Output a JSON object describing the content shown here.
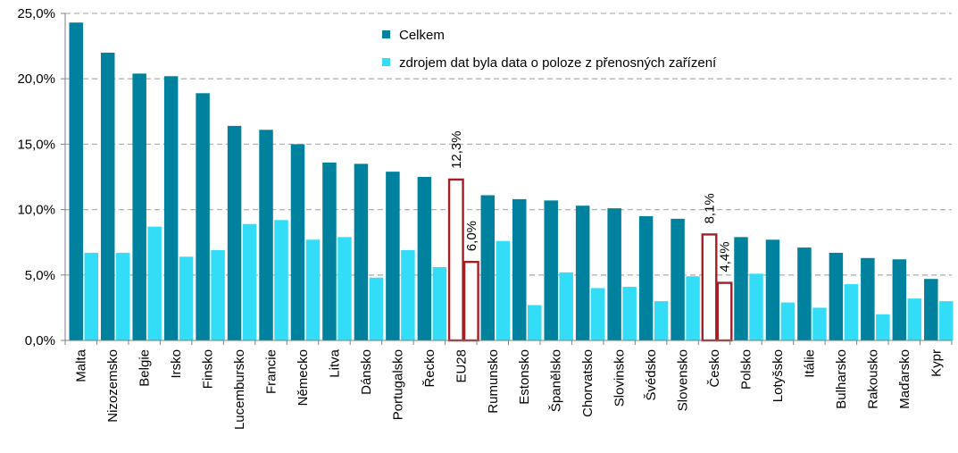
{
  "chart_data": {
    "type": "bar",
    "categories": [
      "Malta",
      "Nizozemsko",
      "Belgie",
      "Irsko",
      "Finsko",
      "Lucembursko",
      "Francie",
      "Německo",
      "Litva",
      "Dánsko",
      "Portugalsko",
      "Řecko",
      "EU28",
      "Rumunsko",
      "Estonsko",
      "Španělsko",
      "Chorvatsko",
      "Slovinsko",
      "Švédsko",
      "Slovensko",
      "Česko",
      "Polsko",
      "Lotyšsko",
      "Itálie",
      "Bulharsko",
      "Rakousko",
      "Maďarsko",
      "Kypr"
    ],
    "series": [
      {
        "name": "Celkem",
        "color": "#00829e",
        "values": [
          24.3,
          22.0,
          20.4,
          20.2,
          18.9,
          16.4,
          16.1,
          15.0,
          13.6,
          13.5,
          12.9,
          12.5,
          12.3,
          11.1,
          10.8,
          10.7,
          10.3,
          10.1,
          9.5,
          9.3,
          8.1,
          7.9,
          7.7,
          7.1,
          6.7,
          6.3,
          6.2,
          4.7
        ]
      },
      {
        "name": "zdrojem dat byla data o poloze z přenosných zařízení",
        "color": "#33ddf7",
        "values": [
          6.7,
          6.7,
          8.7,
          6.4,
          6.9,
          8.9,
          9.2,
          7.7,
          7.9,
          4.8,
          6.9,
          5.6,
          6.0,
          7.6,
          2.7,
          5.2,
          4.0,
          4.1,
          3.0,
          4.9,
          4.4,
          5.1,
          2.9,
          2.5,
          4.3,
          2.0,
          3.2,
          3.0
        ]
      }
    ],
    "y_ticks": [
      "0,0%",
      "5,0%",
      "10,0%",
      "15,0%",
      "20,0%",
      "25,0%"
    ],
    "ylim": [
      0,
      25
    ],
    "grid": true,
    "legend_position": "top-center",
    "highlighted_categories": [
      "EU28",
      "Česko"
    ],
    "highlight_color": "#a31f23",
    "data_labels": [
      {
        "category": "EU28",
        "series": 0,
        "text": "12,3%"
      },
      {
        "category": "EU28",
        "series": 1,
        "text": "6,0%"
      },
      {
        "category": "Česko",
        "series": 0,
        "text": "8,1%"
      },
      {
        "category": "Česko",
        "series": 1,
        "text": "4,4%"
      }
    ]
  }
}
